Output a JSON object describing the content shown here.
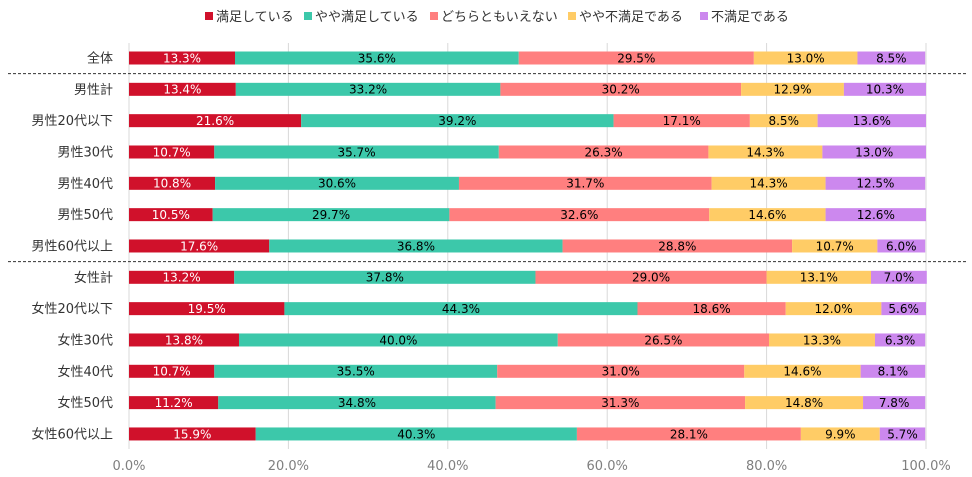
{
  "chart_data": {
    "type": "bar",
    "orientation": "horizontal",
    "stacked": true,
    "percent_stacked": true,
    "title": "",
    "xlabel": "",
    "ylabel": "",
    "xlim": [
      0,
      100
    ],
    "x_ticks": [
      "0.0%",
      "20.0%",
      "40.0%",
      "60.0%",
      "80.0%",
      "100.0%"
    ],
    "grid": "vertical",
    "legend_position": "top",
    "categories": [
      "全体",
      "男性計",
      "男性20代以下",
      "男性30代",
      "男性40代",
      "男性50代",
      "男性60代以上",
      "女性計",
      "女性20代以下",
      "女性30代",
      "女性40代",
      "女性50代",
      "女性60代以上"
    ],
    "group_separators_after": [
      "全体",
      "男性60代以上"
    ],
    "series": [
      {
        "name": "満足している",
        "color": "#d0112b",
        "label_color": "#ffffff",
        "values": [
          13.3,
          13.4,
          21.6,
          10.7,
          10.8,
          10.5,
          17.6,
          13.2,
          19.5,
          13.8,
          10.7,
          11.2,
          15.9
        ]
      },
      {
        "name": "やや満足している",
        "color": "#3cc8aa",
        "label_color": "#000000",
        "values": [
          35.6,
          33.2,
          39.2,
          35.7,
          30.6,
          29.7,
          36.8,
          37.8,
          44.3,
          40.0,
          35.5,
          34.8,
          40.3
        ]
      },
      {
        "name": "どちらともいえない",
        "color": "#ff7f7f",
        "label_color": "#000000",
        "values": [
          29.5,
          30.2,
          17.1,
          26.3,
          31.7,
          32.6,
          28.8,
          29.0,
          18.6,
          26.5,
          31.0,
          31.3,
          28.1
        ]
      },
      {
        "name": "やや不満足である",
        "color": "#ffcc66",
        "label_color": "#000000",
        "values": [
          13.0,
          12.9,
          8.5,
          14.3,
          14.3,
          14.6,
          10.7,
          13.1,
          12.0,
          13.3,
          14.6,
          14.8,
          9.9
        ]
      },
      {
        "name": "不満足である",
        "color": "#cc88ee",
        "label_color": "#000000",
        "values": [
          8.5,
          10.3,
          13.6,
          13.0,
          12.5,
          12.6,
          6.0,
          7.0,
          5.6,
          6.3,
          8.1,
          7.8,
          5.7
        ]
      }
    ]
  }
}
